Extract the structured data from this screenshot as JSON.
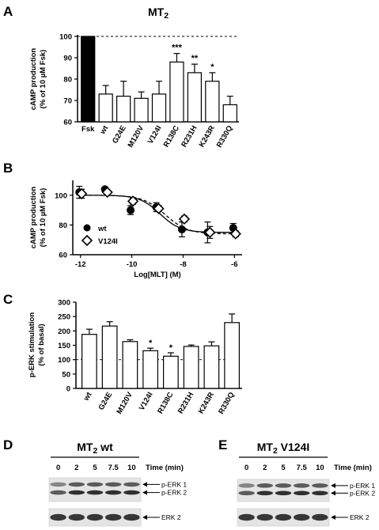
{
  "panels": {
    "A": "A",
    "B": "B",
    "C": "C",
    "D": "D",
    "E": "E"
  },
  "chart_data": [
    {
      "id": "A",
      "type": "bar",
      "title": "MT2",
      "ylabel_lines": [
        "cAMP production",
        "(% of 10 µM Fsk)"
      ],
      "ylim": [
        60,
        100
      ],
      "yticks": [
        60,
        70,
        80,
        90,
        100
      ],
      "reference_line": 100,
      "categories": [
        "Fsk",
        "wt",
        "G24E",
        "M120V",
        "V124I",
        "R138C",
        "R231H",
        "K243R",
        "R330Q"
      ],
      "values": [
        100,
        73,
        72,
        71,
        73,
        88,
        83,
        79,
        68
      ],
      "errors": [
        0,
        4,
        7,
        3,
        6,
        4,
        4,
        4,
        4
      ],
      "filled": [
        true,
        false,
        false,
        false,
        false,
        false,
        false,
        false,
        false
      ],
      "significance": [
        "",
        "",
        "",
        "",
        "",
        "***",
        "**",
        "*",
        ""
      ]
    },
    {
      "id": "B",
      "type": "scatter",
      "xlabel": "Log[MLT] (M)",
      "ylabel_lines": [
        "cAMP production",
        "(% of 10 µM Fsk)"
      ],
      "xlim": [
        -12.3,
        -5.7
      ],
      "ylim": [
        60,
        110
      ],
      "xticks": [
        -12,
        -10,
        -8,
        -6
      ],
      "yticks": [
        60,
        80,
        100
      ],
      "legend_position": "bottom-left",
      "series": [
        {
          "name": "wt",
          "marker": "circle-filled",
          "line": "solid",
          "x": [
            -12,
            -11,
            -10,
            -9,
            -8,
            -7,
            -6
          ],
          "y": [
            102,
            104,
            90,
            92,
            77,
            75,
            78
          ],
          "errors": [
            4,
            1,
            3,
            3,
            5,
            7,
            3
          ],
          "fit": {
            "top": 100,
            "bottom": 75,
            "logEC50": -8.9,
            "hill": 1.1
          }
        },
        {
          "name": "V124I",
          "marker": "diamond-open",
          "line": "dashed",
          "x": [
            -12,
            -11,
            -10,
            -9,
            -8,
            -7,
            -6
          ],
          "y": [
            101,
            102,
            96,
            91,
            84,
            75,
            74
          ],
          "errors": [
            3,
            1,
            2,
            2,
            2,
            4,
            2
          ],
          "fit": {
            "top": 100,
            "bottom": 74,
            "logEC50": -8.7,
            "hill": 1.0
          }
        }
      ]
    },
    {
      "id": "C",
      "type": "bar",
      "ylabel_lines": [
        "p-ERK stimulation",
        "(% of basal)"
      ],
      "ylim": [
        0,
        300
      ],
      "yticks": [
        0,
        50,
        100,
        150,
        200,
        250,
        300
      ],
      "reference_line": 100,
      "categories": [
        "wt",
        "G24E",
        "M120V",
        "V124I",
        "R138C",
        "R231H",
        "K243R",
        "R330Q"
      ],
      "values": [
        188,
        217,
        163,
        131,
        112,
        146,
        148,
        229
      ],
      "errors": [
        18,
        15,
        6,
        9,
        12,
        5,
        14,
        30
      ],
      "significance": [
        "",
        "",
        "",
        "*",
        "*",
        "",
        "",
        ""
      ]
    }
  ],
  "blots": {
    "D": {
      "title": "MT2 wt",
      "time_label": "Time (min)",
      "times": [
        "0",
        "2",
        "5",
        "7.5",
        "10"
      ],
      "band_labels": [
        "p-ERK 1",
        "p-ERK 2",
        "ERK 2"
      ]
    },
    "E": {
      "title": "MT2 V124I",
      "time_label": "Time (min)",
      "times": [
        "0",
        "2",
        "5",
        "7.5",
        "10"
      ],
      "band_labels": [
        "p-ERK 1",
        "p-ERK 2",
        "ERK 2"
      ]
    }
  }
}
